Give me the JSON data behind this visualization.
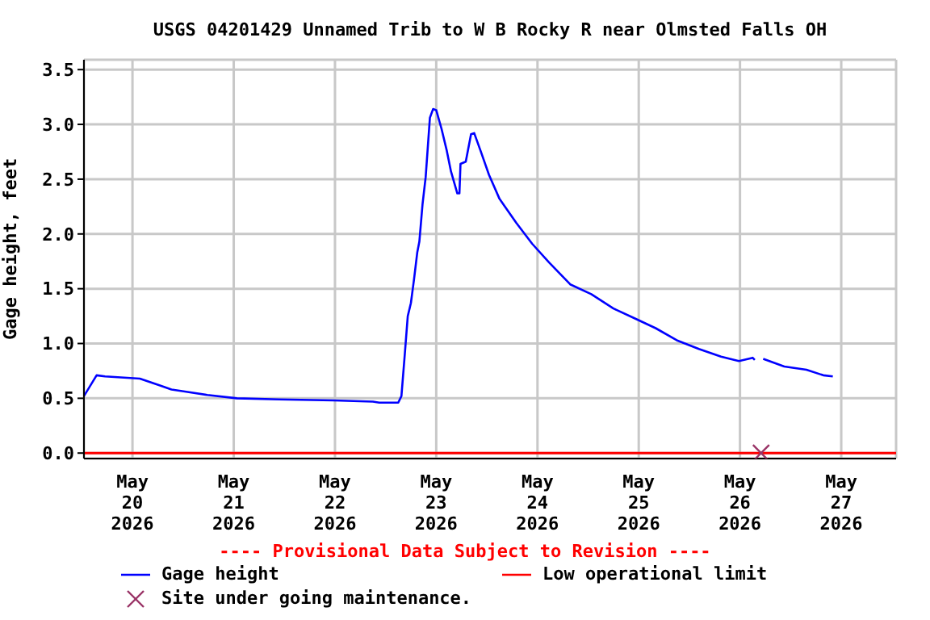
{
  "chart_data": {
    "type": "line",
    "title": "USGS 04201429 Unnamed Trib to W B Rocky R near Olmsted Falls OH",
    "ylabel": "Gage height, feet",
    "annotations": [
      "---- Provisional Data Subject to Revision ----"
    ],
    "xlim": [
      "2026-05-19T12:30",
      "2026-05-27T13:00"
    ],
    "xticks": [
      {
        "value": "2026-05-20",
        "label": "May\n20\n2026"
      },
      {
        "value": "2026-05-21",
        "label": "May\n21\n2026"
      },
      {
        "value": "2026-05-22",
        "label": "May\n22\n2026"
      },
      {
        "value": "2026-05-23",
        "label": "May\n23\n2026"
      },
      {
        "value": "2026-05-24",
        "label": "May\n24\n2026"
      },
      {
        "value": "2026-05-25",
        "label": "May\n25\n2026"
      },
      {
        "value": "2026-05-26",
        "label": "May\n26\n2026"
      },
      {
        "value": "2026-05-27",
        "label": "May\n27\n2026"
      }
    ],
    "ylim": [
      -0.05,
      3.59
    ],
    "yticks": [
      {
        "value": 0,
        "label": "0.0"
      },
      {
        "value": 0.5,
        "label": "0.5"
      },
      {
        "value": 1,
        "label": "1.0"
      },
      {
        "value": 1.5,
        "label": "1.5"
      },
      {
        "value": 2,
        "label": "2.0"
      },
      {
        "value": 2.5,
        "label": "2.5"
      },
      {
        "value": 3,
        "label": "3.0"
      },
      {
        "value": 3.5,
        "label": "3.5"
      }
    ],
    "grid": true,
    "legend": "bottom",
    "ref_lines": [
      {
        "axis": "y",
        "value": 0,
        "label": "Low operational limit",
        "color": "#ff0000"
      }
    ],
    "series": [
      {
        "name": "Gage height",
        "type": "line",
        "color": "#0000ff",
        "marker": "none",
        "x": [
          "2026-05-19T12:30",
          "2026-05-19T15:30",
          "2026-05-19T17:30",
          "2026-05-19T21:15",
          "2026-05-20T01:45",
          "2026-05-20T06:15",
          "2026-05-20T09:15",
          "2026-05-20T12:45",
          "2026-05-20T17:45",
          "2026-05-21T00:45",
          "2026-05-21T10:45",
          "2026-05-21T23:45",
          "2026-05-22T09:00",
          "2026-05-22T10:30",
          "2026-05-22T15:00",
          "2026-05-22T15:45",
          "2026-05-22T16:30",
          "2026-05-22T17:15",
          "2026-05-22T18:00",
          "2026-05-22T18:45",
          "2026-05-22T19:30",
          "2026-05-22T20:00",
          "2026-05-22T20:45",
          "2026-05-22T21:30",
          "2026-05-22T22:30",
          "2026-05-22T23:15",
          "2026-05-23T00:00",
          "2026-05-23T01:15",
          "2026-05-23T02:30",
          "2026-05-23T03:30",
          "2026-05-23T05:00",
          "2026-05-23T05:30",
          "2026-05-23T05:45",
          "2026-05-23T07:00",
          "2026-05-23T08:15",
          "2026-05-23T09:00",
          "2026-05-23T10:30",
          "2026-05-23T12:30",
          "2026-05-23T15:00",
          "2026-05-23T19:00",
          "2026-05-23T22:45",
          "2026-05-24T02:45",
          "2026-05-24T07:45",
          "2026-05-24T12:45",
          "2026-05-24T18:00",
          "2026-05-24T23:00",
          "2026-05-25T04:00",
          "2026-05-25T09:00",
          "2026-05-25T14:15",
          "2026-05-25T19:30",
          "2026-05-25T23:45",
          "2026-05-26T03:00",
          "2026-05-26T03:30",
          "2026-05-26T04:30",
          "2026-05-26T05:30",
          "2026-05-26T10:30",
          "2026-05-26T15:45",
          "2026-05-26T19:45",
          "2026-05-26T22:00"
        ],
        "values": [
          0.52,
          0.71,
          0.7,
          0.69,
          0.68,
          0.62,
          0.58,
          0.56,
          0.53,
          0.5,
          0.49,
          0.48,
          0.47,
          0.46,
          0.46,
          0.52,
          0.88,
          1.25,
          1.37,
          1.59,
          1.83,
          1.93,
          2.27,
          2.52,
          3.06,
          3.14,
          3.13,
          2.96,
          2.76,
          2.57,
          2.37,
          2.37,
          2.64,
          2.66,
          2.91,
          2.92,
          2.76,
          2.54,
          2.32,
          2.1,
          1.91,
          1.74,
          1.54,
          1.45,
          1.32,
          1.23,
          1.14,
          1.03,
          0.95,
          0.88,
          0.84,
          0.87,
          0.85,
          null,
          0.86,
          0.79,
          0.76,
          0.71,
          0.7
        ]
      },
      {
        "name": "Site under going maintenance.",
        "type": "scatter",
        "color": "#993366",
        "marker": "cross",
        "x": [
          "2026-05-26T05:00"
        ],
        "values": [
          0
        ]
      }
    ]
  }
}
